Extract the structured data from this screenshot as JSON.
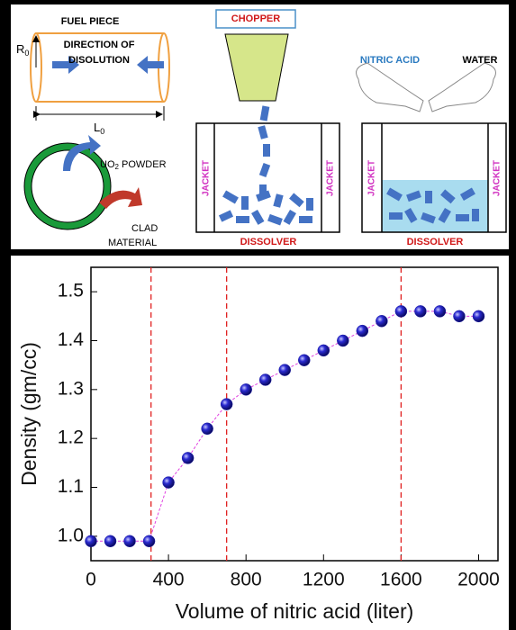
{
  "diagram": {
    "fuel_piece": "FUEL PIECE",
    "radius": {
      "text": "R",
      "sub": "0"
    },
    "direction": [
      "DIRECTION OF",
      "DISOLUTION"
    ],
    "length": {
      "text": "L",
      "sub": "0"
    },
    "powder": {
      "text": "UO",
      "sub": "2",
      "rest": " POWDER"
    },
    "clad": [
      "CLAD",
      "MATERIAL"
    ],
    "chopper": "CHOPPER",
    "jacket": "JACKET",
    "dissolver": "DISSOLVER",
    "nitric_acid": "NITRIC ACID",
    "water": "WATER"
  },
  "chart_data": {
    "type": "scatter",
    "x_label": "Volume of nitric acid (liter)",
    "y_label": "Density (gm/cc)",
    "x": [
      0,
      100,
      200,
      300,
      400,
      500,
      600,
      700,
      800,
      900,
      1000,
      1100,
      1200,
      1300,
      1400,
      1500,
      1600,
      1700,
      1800,
      1900,
      2000
    ],
    "values": [
      0.99,
      0.99,
      0.99,
      0.99,
      1.11,
      1.16,
      1.22,
      1.27,
      1.3,
      1.32,
      1.34,
      1.36,
      1.38,
      1.4,
      1.42,
      1.44,
      1.46,
      1.46,
      1.46,
      1.45,
      1.45
    ],
    "color": "#1c1ca8",
    "line_color": "#e040e0",
    "vlines": [
      310,
      700,
      1600
    ],
    "vline_color": "#e02020",
    "xlim": [
      0,
      2100
    ],
    "ylim": [
      0.95,
      1.55
    ],
    "xticks": [
      0,
      400,
      800,
      1200,
      1600,
      2000
    ],
    "yticks": [
      {
        "value": 1.0,
        "label": "1.0"
      },
      1.1,
      1.2,
      1.3,
      1.4,
      1.5
    ]
  }
}
